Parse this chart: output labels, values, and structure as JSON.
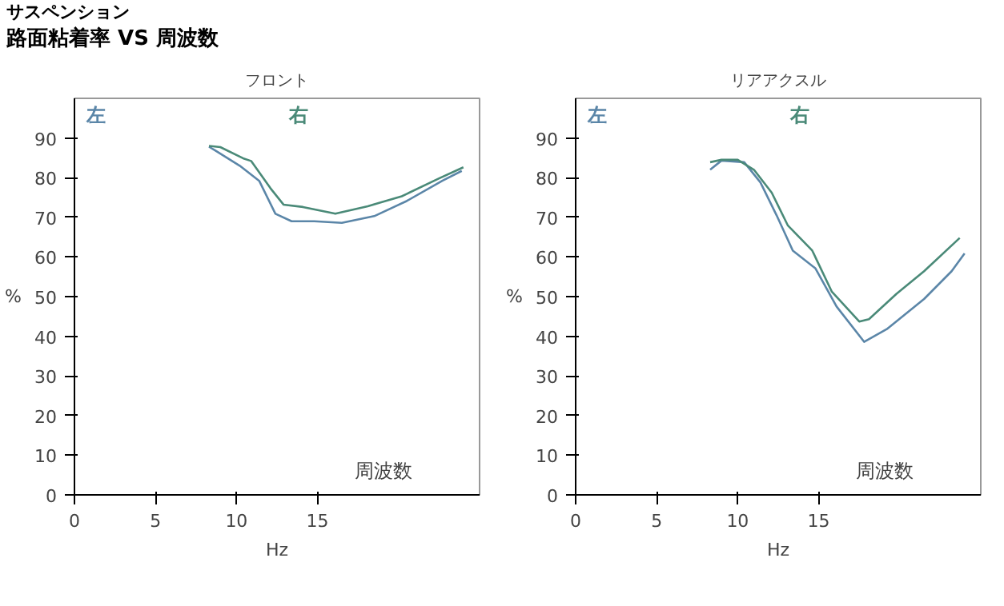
{
  "chart_data": [
    {
      "type": "line",
      "title": "フロント",
      "annotations": [
        "サスペンション",
        "路面粘着率 VS 周波数",
        "周波数"
      ],
      "xlabel": "Hz",
      "ylabel": "%",
      "xlim": [
        0,
        25
      ],
      "ylim": [
        0,
        100
      ],
      "xticks": [
        0,
        5,
        10,
        15
      ],
      "yticks": [
        0,
        10,
        20,
        30,
        40,
        50,
        60,
        70,
        80,
        90
      ],
      "grid": false,
      "series": [
        {
          "name": "左",
          "color": "#5b86a8",
          "x": [
            8.3,
            8.7,
            10.2,
            11.4,
            12.4,
            13.4,
            14.8,
            16.5,
            18.5,
            20.5,
            22.7,
            23.9
          ],
          "values": [
            87.8,
            86.8,
            83,
            79.2,
            70.9,
            69,
            69,
            68.6,
            70.3,
            74.1,
            79.2,
            81.7
          ]
        },
        {
          "name": "右",
          "color": "#4a8a78",
          "x": [
            8.3,
            9,
            10.4,
            10.9,
            12.1,
            12.9,
            14.1,
            16.1,
            18.1,
            20.2,
            22.5,
            24
          ],
          "values": [
            88,
            87.7,
            84.9,
            84.2,
            77.3,
            73.2,
            72.6,
            70.9,
            72.8,
            75.3,
            79.8,
            82.6
          ]
        }
      ]
    },
    {
      "type": "line",
      "title": "リアアクスル",
      "annotations": [
        "周波数"
      ],
      "xlabel": "Hz",
      "ylabel": "%",
      "xlim": [
        0,
        25
      ],
      "ylim": [
        0,
        100
      ],
      "xticks": [
        0,
        5,
        10,
        15
      ],
      "yticks": [
        0,
        10,
        20,
        30,
        40,
        50,
        60,
        70,
        80,
        90
      ],
      "grid": false,
      "series": [
        {
          "name": "左",
          "color": "#5b86a8",
          "x": [
            8.3,
            9,
            10.4,
            11.4,
            12.4,
            13.4,
            14.8,
            16.1,
            17.8,
            19.2,
            21.5,
            23.2,
            24
          ],
          "values": [
            82,
            84.3,
            83.9,
            78.8,
            70.5,
            61.6,
            57.1,
            47.5,
            38.6,
            41.8,
            49.4,
            56.4,
            60.9
          ]
        },
        {
          "name": "右",
          "color": "#4a8a78",
          "x": [
            8.3,
            9,
            10,
            11,
            12.1,
            13.1,
            14.6,
            15.8,
            17.5,
            18.1,
            19.8,
            21.5,
            23.7
          ],
          "values": [
            83.9,
            84.5,
            84.5,
            82,
            76.2,
            67.9,
            61.6,
            51.3,
            43.7,
            44.3,
            50.7,
            56.4,
            64.8
          ]
        }
      ]
    }
  ]
}
